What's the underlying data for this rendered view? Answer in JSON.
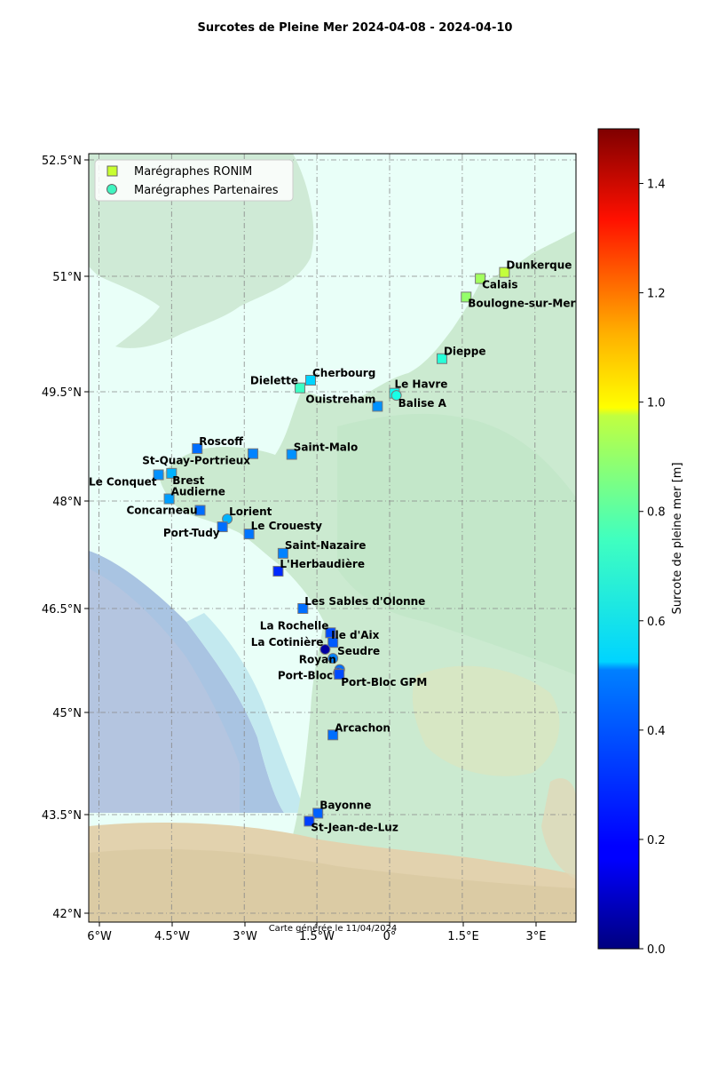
{
  "title": "Surcotes de Pleine Mer 2024-04-08 - 2024-04-10",
  "footer": "Carte générée le 11/04/2024",
  "legend": {
    "ronim": "Marégraphes RONIM",
    "partners": "Marégraphes Partenaires",
    "placement": "upper-left"
  },
  "colorbar": {
    "label": "Surcote de pleine mer [m]",
    "min": 0.0,
    "max": 1.5,
    "ticks": [
      "0.0",
      "0.2",
      "0.4",
      "0.6",
      "0.8",
      "1.0",
      "1.2",
      "1.4"
    ],
    "colormap": "jet"
  },
  "axes": {
    "lat_ticks": [
      "52.5°N",
      "51°N",
      "49.5°N",
      "48°N",
      "46.5°N",
      "45°N",
      "43.5°N",
      "42°N"
    ],
    "lon_ticks": [
      "6°W",
      "4.5°W",
      "3°W",
      "1.5°W",
      "0°",
      "1.5°E",
      "3°E"
    ],
    "grid": true
  },
  "chart_data": {
    "type": "scatter",
    "title": "Surcotes de Pleine Mer 2024-04-08 - 2024-04-10",
    "xlim": [
      -6.2,
      3.8
    ],
    "ylim": [
      41.9,
      52.6
    ],
    "stations": [
      {
        "name": "Dunkerque",
        "lon": 2.37,
        "lat": 51.05,
        "surge": 0.85,
        "type": "ronim"
      },
      {
        "name": "Calais",
        "lon": 1.87,
        "lat": 50.97,
        "surge": 0.8,
        "type": "ronim"
      },
      {
        "name": "Boulogne-sur-Mer",
        "lon": 1.58,
        "lat": 50.73,
        "surge": 0.78,
        "type": "ronim"
      },
      {
        "name": "Dieppe",
        "lon": 1.08,
        "lat": 49.93,
        "surge": 0.62,
        "type": "ronim"
      },
      {
        "name": "Le Havre",
        "lon": 0.1,
        "lat": 49.48,
        "surge": 0.58,
        "type": "ronim"
      },
      {
        "name": "Balise A",
        "lon": 0.14,
        "lat": 49.45,
        "surge": 0.6,
        "type": "partner"
      },
      {
        "name": "Ouistreham",
        "lon": -0.25,
        "lat": 49.3,
        "surge": 0.4,
        "type": "ronim"
      },
      {
        "name": "Cherbourg",
        "lon": -1.63,
        "lat": 49.65,
        "surge": 0.5,
        "type": "ronim"
      },
      {
        "name": "Dielette",
        "lon": -1.85,
        "lat": 49.55,
        "surge": 0.65,
        "type": "ronim"
      },
      {
        "name": "Saint-Malo",
        "lon": -2.02,
        "lat": 48.64,
        "surge": 0.4,
        "type": "ronim"
      },
      {
        "name": "Roscoff",
        "lon": -3.97,
        "lat": 48.72,
        "surge": 0.35,
        "type": "ronim"
      },
      {
        "name": "St-Quay-Portrieux",
        "lon": -2.82,
        "lat": 48.65,
        "surge": 0.38,
        "type": "ronim"
      },
      {
        "name": "Le Conquet",
        "lon": -4.77,
        "lat": 48.36,
        "surge": 0.4,
        "type": "ronim"
      },
      {
        "name": "Brest",
        "lon": -4.5,
        "lat": 48.38,
        "surge": 0.45,
        "type": "ronim"
      },
      {
        "name": "Audierne",
        "lon": -4.55,
        "lat": 48.03,
        "surge": 0.42,
        "type": "ronim"
      },
      {
        "name": "Concarneau",
        "lon": -3.91,
        "lat": 47.87,
        "surge": 0.35,
        "type": "ronim"
      },
      {
        "name": "Lorient",
        "lon": -3.35,
        "lat": 47.75,
        "surge": 0.45,
        "type": "partner"
      },
      {
        "name": "Port-Tudy",
        "lon": -3.45,
        "lat": 47.64,
        "surge": 0.35,
        "type": "ronim"
      },
      {
        "name": "Le Crouesty",
        "lon": -2.9,
        "lat": 47.54,
        "surge": 0.36,
        "type": "ronim"
      },
      {
        "name": "Saint-Nazaire",
        "lon": -2.2,
        "lat": 47.27,
        "surge": 0.38,
        "type": "ronim"
      },
      {
        "name": "L'Herbaudière",
        "lon": -2.3,
        "lat": 47.02,
        "surge": 0.25,
        "type": "ronim"
      },
      {
        "name": "Les Sables d'Olonne",
        "lon": -1.79,
        "lat": 46.5,
        "surge": 0.35,
        "type": "ronim"
      },
      {
        "name": "La Rochelle",
        "lon": -1.22,
        "lat": 46.15,
        "surge": 0.3,
        "type": "ronim"
      },
      {
        "name": "Ile d'Aix",
        "lon": -1.17,
        "lat": 46.01,
        "surge": 0.32,
        "type": "ronim"
      },
      {
        "name": "La Cotinière",
        "lon": -1.33,
        "lat": 45.91,
        "surge": 0.05,
        "type": "partner"
      },
      {
        "name": "Seudre",
        "lon": -1.17,
        "lat": 45.78,
        "surge": 0.38,
        "type": "partner"
      },
      {
        "name": "Royan",
        "lon": -1.03,
        "lat": 45.62,
        "surge": 0.35,
        "type": "partner"
      },
      {
        "name": "Port-Bloc",
        "lon": -1.06,
        "lat": 45.57,
        "surge": 0.22,
        "type": "partner"
      },
      {
        "name": "Port-Bloc GPM",
        "lon": -1.04,
        "lat": 45.55,
        "surge": 0.3,
        "type": "ronim"
      },
      {
        "name": "Arcachon",
        "lon": -1.17,
        "lat": 44.67,
        "surge": 0.35,
        "type": "ronim"
      },
      {
        "name": "Bayonne",
        "lon": -1.48,
        "lat": 43.52,
        "surge": 0.33,
        "type": "ronim"
      },
      {
        "name": "St-Jean-de-Luz",
        "lon": -1.66,
        "lat": 43.4,
        "surge": 0.28,
        "type": "ronim"
      }
    ]
  }
}
